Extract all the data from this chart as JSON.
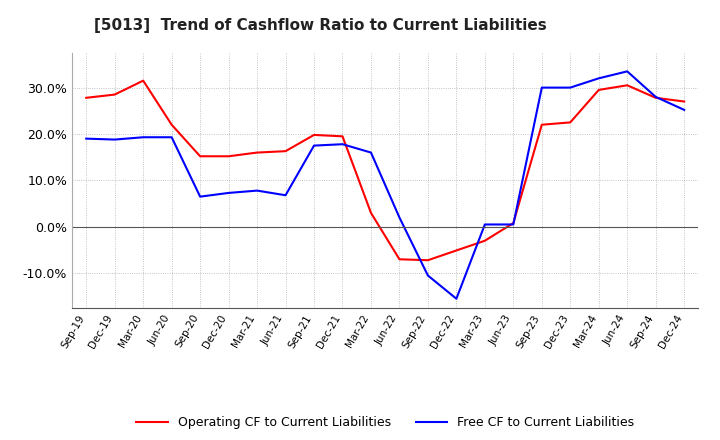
{
  "title": "[5013]  Trend of Cashflow Ratio to Current Liabilities",
  "x_labels": [
    "Sep-19",
    "Dec-19",
    "Mar-20",
    "Jun-20",
    "Sep-20",
    "Dec-20",
    "Mar-21",
    "Jun-21",
    "Sep-21",
    "Dec-21",
    "Mar-22",
    "Jun-22",
    "Sep-22",
    "Dec-22",
    "Mar-23",
    "Jun-23",
    "Sep-23",
    "Dec-23",
    "Mar-24",
    "Jun-24",
    "Sep-24",
    "Dec-24"
  ],
  "operating_cf": [
    0.278,
    0.285,
    0.315,
    0.22,
    0.152,
    0.152,
    0.16,
    0.163,
    0.198,
    0.195,
    0.03,
    -0.07,
    -0.072,
    null,
    -0.03,
    0.008,
    0.22,
    0.225,
    0.295,
    0.305,
    0.278,
    0.27
  ],
  "free_cf": [
    0.19,
    0.188,
    0.193,
    0.193,
    0.065,
    0.073,
    0.078,
    0.068,
    0.175,
    0.178,
    0.16,
    0.02,
    -0.105,
    -0.155,
    0.005,
    0.005,
    0.3,
    0.3,
    0.32,
    0.335,
    0.28,
    0.252
  ],
  "ylim": [
    -0.175,
    0.375
  ],
  "yticks": [
    -0.1,
    0.0,
    0.1,
    0.2,
    0.3
  ],
  "operating_color": "#ff0000",
  "free_color": "#0000ff",
  "grid_color": "#aaaaaa",
  "background_color": "#ffffff",
  "title_fontsize": 11,
  "legend_labels": [
    "Operating CF to Current Liabilities",
    "Free CF to Current Liabilities"
  ]
}
